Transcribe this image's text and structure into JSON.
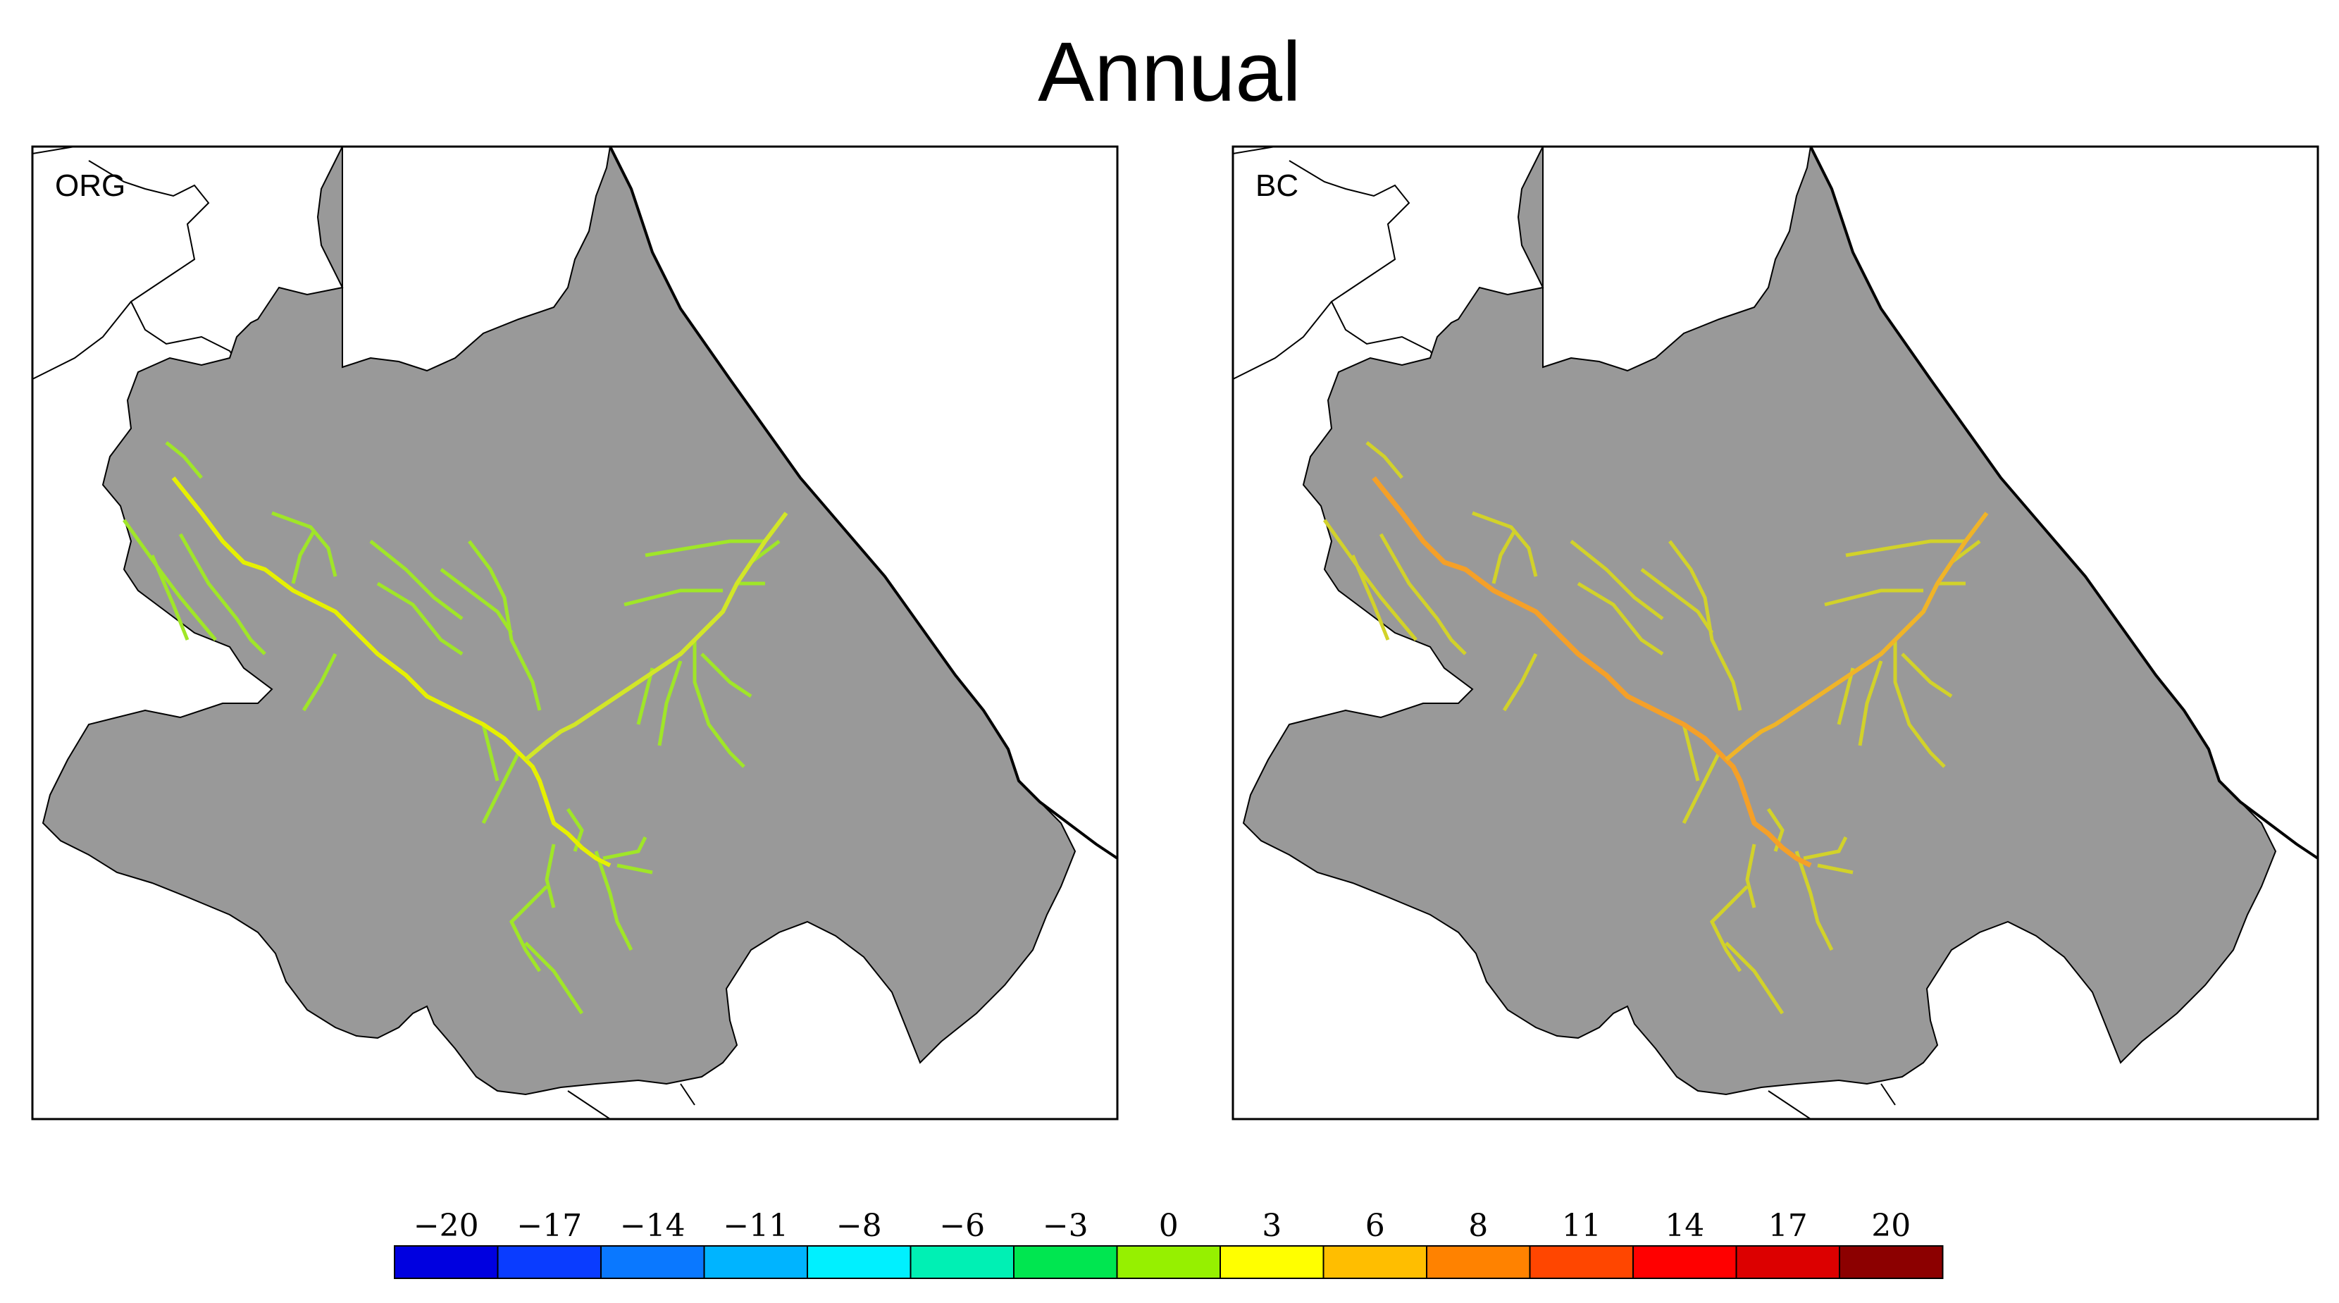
{
  "figure": {
    "title": "Annual",
    "panels": [
      {
        "id": "org",
        "label": "ORG"
      },
      {
        "id": "bc",
        "label": "BC"
      }
    ]
  },
  "colorbar": {
    "ticks": [
      "−20",
      "−17",
      "−14",
      "−11",
      "−8",
      "−6",
      "−3",
      "0",
      "3",
      "6",
      "8",
      "11",
      "14",
      "17",
      "20"
    ],
    "colors": [
      "#0000e0",
      "#0a3cff",
      "#0a78ff",
      "#00b4ff",
      "#00f0ff",
      "#00f0b4",
      "#00e650",
      "#96f000",
      "#ffff00",
      "#ffbe00",
      "#ff8200",
      "#ff4600",
      "#ff0000",
      "#dc0000",
      "#8c0000"
    ]
  },
  "style": {
    "land": "#999999",
    "org_river_main": "#e6f000",
    "org_river_trib": "#a0e628",
    "bc_river_main": "#f5a028",
    "bc_river_trib": "#d2d22a"
  }
}
